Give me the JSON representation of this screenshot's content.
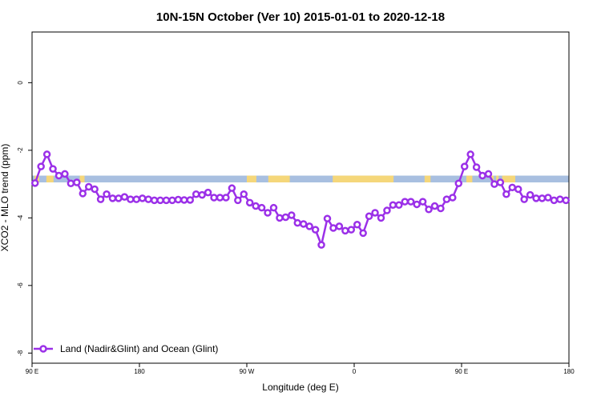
{
  "chart_data": {
    "type": "line",
    "title": "10N-15N October (Ver 10)   2015-01-01 to 2020-12-18",
    "xlabel": "Longitude (deg E)",
    "ylabel": "XCO2 - MLO trend (ppm)",
    "xlim": [
      90,
      540
    ],
    "ylim": [
      -8.3,
      1.5
    ],
    "x_ticks": [
      {
        "value": 90,
        "label": "90 E"
      },
      {
        "value": 180,
        "label": "180"
      },
      {
        "value": 270,
        "label": "90 W"
      },
      {
        "value": 360,
        "label": "0"
      },
      {
        "value": 450,
        "label": "90 E"
      },
      {
        "value": 540,
        "label": "180"
      }
    ],
    "y_ticks": [
      {
        "value": 0,
        "label": "0"
      },
      {
        "value": -2,
        "label": "-2"
      },
      {
        "value": -4,
        "label": "-4"
      },
      {
        "value": -6,
        "label": "-6"
      },
      {
        "value": -8,
        "label": "-8"
      }
    ],
    "grid": false,
    "legend_position": "bottom-left",
    "background_band": {
      "y_range": [
        -2.75,
        -2.95
      ],
      "ocean_color": "#a8bfe0",
      "land_color": "#f5d77a",
      "land_x_ranges": [
        [
          92,
          96
        ],
        [
          102,
          104
        ],
        [
          103,
          108
        ],
        [
          130,
          134
        ],
        [
          270,
          278
        ],
        [
          288,
          306
        ],
        [
          342,
          393
        ],
        [
          419,
          424
        ],
        [
          454,
          459
        ],
        [
          475,
          477
        ],
        [
          479,
          481
        ],
        [
          484,
          495
        ]
      ]
    },
    "series": [
      {
        "name": "Land (Nadir&Glint) and Ocean (Glint)",
        "color": "#9b30e8",
        "x": [
          92.5,
          97.5,
          102.5,
          107.5,
          112.5,
          117.5,
          122.5,
          127.5,
          132.5,
          137.5,
          142.5,
          147.5,
          152.5,
          157.5,
          162.5,
          167.5,
          172.5,
          177.5,
          182.5,
          187.5,
          192.5,
          197.5,
          202.5,
          207.5,
          212.5,
          217.5,
          222.5,
          227.5,
          232.5,
          237.5,
          242.5,
          247.5,
          252.5,
          257.5,
          262.5,
          267.5,
          272.5,
          277.5,
          282.5,
          287.5,
          292.5,
          297.5,
          302.5,
          307.5,
          312.5,
          317.5,
          322.5,
          327.5,
          332.5,
          337.5,
          342.5,
          347.5,
          352.5,
          357.5,
          362.5,
          367.5,
          372.5,
          377.5,
          382.5,
          387.5,
          392.5,
          397.5,
          402.5,
          407.5,
          412.5,
          417.5,
          422.5,
          427.5,
          432.5,
          437.5,
          442.5,
          447.5,
          452.5,
          457.5,
          462.5,
          467.5,
          472.5,
          477.5,
          482.5,
          487.5,
          492.5,
          497.5,
          502.5,
          507.5,
          512.5,
          517.5,
          522.5,
          527.5,
          532.5,
          537.5
        ],
        "y": [
          -2.97,
          -2.48,
          -2.12,
          -2.55,
          -2.75,
          -2.7,
          -2.98,
          -2.95,
          -3.28,
          -3.08,
          -3.15,
          -3.45,
          -3.3,
          -3.42,
          -3.42,
          -3.38,
          -3.45,
          -3.45,
          -3.42,
          -3.45,
          -3.48,
          -3.48,
          -3.48,
          -3.48,
          -3.46,
          -3.47,
          -3.47,
          -3.3,
          -3.32,
          -3.25,
          -3.4,
          -3.4,
          -3.4,
          -3.12,
          -3.48,
          -3.3,
          -3.55,
          -3.65,
          -3.7,
          -3.85,
          -3.7,
          -4.0,
          -3.98,
          -3.92,
          -4.15,
          -4.18,
          -4.25,
          -4.35,
          -4.8,
          -4.02,
          -4.3,
          -4.25,
          -4.38,
          -4.35,
          -4.2,
          -4.45,
          -3.95,
          -3.85,
          -4.0,
          -3.78,
          -3.62,
          -3.62,
          -3.52,
          -3.52,
          -3.6,
          -3.52,
          -3.75,
          -3.65,
          -3.72,
          -3.45,
          -3.4,
          -2.98,
          -2.48,
          -2.12,
          -2.5,
          -2.75,
          -2.7,
          -3.0,
          -2.95,
          -3.3,
          -3.1,
          -3.15,
          -3.45,
          -3.32,
          -3.42,
          -3.42,
          -3.4,
          -3.48,
          -3.45,
          -3.48
        ]
      }
    ]
  }
}
